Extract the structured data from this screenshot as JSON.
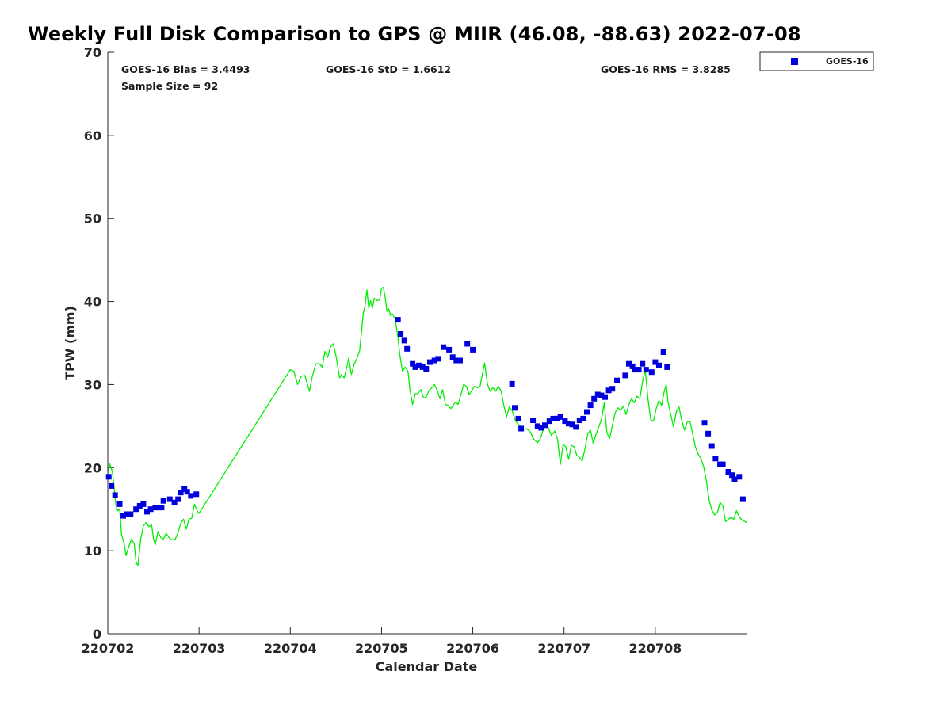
{
  "title": "Weekly Full Disk Comparison to GPS @ MIIR (46.08, -88.63) 2022-07-08",
  "stats": {
    "bias": "GOES-16 Bias = 3.4493",
    "std": "GOES-16 StD = 1.6612",
    "rms": "GOES-16 RMS = 3.8285",
    "sample": "Sample Size = 92"
  },
  "colors": {
    "goes": "#0000dd",
    "gps": "#00ee00",
    "axis": "#262626"
  },
  "chart_data": {
    "type": "scatter",
    "xlabel": "Calendar Date",
    "ylabel": "TPW (mm)",
    "x_unit": "days",
    "xlim": [
      0,
      7
    ],
    "ylim": [
      0,
      70
    ],
    "xticks": [
      {
        "value": 0,
        "label": "220702"
      },
      {
        "value": 1,
        "label": "220703"
      },
      {
        "value": 2,
        "label": "220704"
      },
      {
        "value": 3,
        "label": "220705"
      },
      {
        "value": 4,
        "label": "220706"
      },
      {
        "value": 5,
        "label": "220707"
      },
      {
        "value": 6,
        "label": "220708"
      }
    ],
    "yticks": [
      0,
      10,
      20,
      30,
      40,
      50,
      60,
      70
    ],
    "legend": {
      "position": "top-right",
      "entries": [
        "GOES-16"
      ]
    },
    "series": [
      {
        "name": "GOES-16",
        "kind": "scatter",
        "color": "#0000dd",
        "points": [
          [
            0.01,
            18.9
          ],
          [
            0.04,
            17.8
          ],
          [
            0.08,
            16.7
          ],
          [
            0.13,
            15.6
          ],
          [
            0.17,
            14.2
          ],
          [
            0.21,
            14.4
          ],
          [
            0.25,
            14.4
          ],
          [
            0.31,
            15.0
          ],
          [
            0.35,
            15.4
          ],
          [
            0.39,
            15.6
          ],
          [
            0.43,
            14.7
          ],
          [
            0.47,
            15.0
          ],
          [
            0.52,
            15.2
          ],
          [
            0.56,
            15.2
          ],
          [
            0.59,
            15.2
          ],
          [
            0.61,
            16.0
          ],
          [
            0.68,
            16.2
          ],
          [
            0.73,
            15.8
          ],
          [
            0.77,
            16.2
          ],
          [
            0.8,
            17.0
          ],
          [
            0.84,
            17.4
          ],
          [
            0.87,
            17.1
          ],
          [
            0.91,
            16.6
          ],
          [
            0.97,
            16.8
          ],
          [
            3.18,
            37.8
          ],
          [
            3.21,
            36.1
          ],
          [
            3.25,
            35.3
          ],
          [
            3.28,
            34.3
          ],
          [
            3.34,
            32.5
          ],
          [
            3.37,
            32.1
          ],
          [
            3.41,
            32.3
          ],
          [
            3.45,
            32.1
          ],
          [
            3.49,
            31.9
          ],
          [
            3.53,
            32.7
          ],
          [
            3.58,
            32.9
          ],
          [
            3.62,
            33.1
          ],
          [
            3.68,
            34.5
          ],
          [
            3.74,
            34.2
          ],
          [
            3.78,
            33.3
          ],
          [
            3.82,
            32.9
          ],
          [
            3.86,
            32.9
          ],
          [
            3.94,
            34.9
          ],
          [
            4.0,
            34.2
          ],
          [
            4.43,
            30.1
          ],
          [
            4.46,
            27.2
          ],
          [
            4.5,
            25.9
          ],
          [
            4.53,
            24.7
          ],
          [
            4.66,
            25.7
          ],
          [
            4.71,
            25.0
          ],
          [
            4.75,
            24.8
          ],
          [
            4.79,
            25.1
          ],
          [
            4.84,
            25.6
          ],
          [
            4.88,
            25.9
          ],
          [
            4.92,
            25.9
          ],
          [
            4.96,
            26.1
          ],
          [
            5.01,
            25.6
          ],
          [
            5.05,
            25.3
          ],
          [
            5.09,
            25.2
          ],
          [
            5.13,
            24.9
          ],
          [
            5.17,
            25.7
          ],
          [
            5.21,
            25.9
          ],
          [
            5.25,
            26.7
          ],
          [
            5.29,
            27.5
          ],
          [
            5.33,
            28.3
          ],
          [
            5.37,
            28.8
          ],
          [
            5.41,
            28.7
          ],
          [
            5.45,
            28.5
          ],
          [
            5.49,
            29.3
          ],
          [
            5.53,
            29.5
          ],
          [
            5.58,
            30.5
          ],
          [
            5.67,
            31.1
          ],
          [
            5.71,
            32.5
          ],
          [
            5.75,
            32.2
          ],
          [
            5.78,
            31.8
          ],
          [
            5.82,
            31.8
          ],
          [
            5.86,
            32.5
          ],
          [
            5.9,
            31.8
          ],
          [
            5.96,
            31.5
          ],
          [
            6.0,
            32.7
          ],
          [
            6.04,
            32.3
          ],
          [
            6.09,
            33.9
          ],
          [
            6.13,
            32.1
          ],
          [
            6.54,
            25.4
          ],
          [
            6.58,
            24.1
          ],
          [
            6.62,
            22.6
          ],
          [
            6.66,
            21.1
          ],
          [
            6.71,
            20.4
          ],
          [
            6.74,
            20.4
          ],
          [
            6.8,
            19.5
          ],
          [
            6.84,
            19.1
          ],
          [
            6.87,
            18.6
          ],
          [
            6.92,
            18.9
          ],
          [
            6.96,
            16.2
          ]
        ]
      },
      {
        "kind": "line",
        "color": "#00ee00",
        "points": [
          [
            0.0,
            19.0
          ],
          [
            0.02,
            20.5
          ],
          [
            0.05,
            19.5
          ],
          [
            0.07,
            17.5
          ],
          [
            0.09,
            15.2
          ],
          [
            0.11,
            14.8
          ],
          [
            0.13,
            15.0
          ],
          [
            0.15,
            12.0
          ],
          [
            0.18,
            10.8
          ],
          [
            0.2,
            9.4
          ],
          [
            0.23,
            10.5
          ],
          [
            0.26,
            11.4
          ],
          [
            0.29,
            10.8
          ],
          [
            0.31,
            8.6
          ],
          [
            0.33,
            8.2
          ],
          [
            0.36,
            11.4
          ],
          [
            0.39,
            13.0
          ],
          [
            0.42,
            13.4
          ],
          [
            0.45,
            12.9
          ],
          [
            0.48,
            13.1
          ],
          [
            0.5,
            11.5
          ],
          [
            0.52,
            10.7
          ],
          [
            0.55,
            12.3
          ],
          [
            0.58,
            11.6
          ],
          [
            0.61,
            11.4
          ],
          [
            0.64,
            12.1
          ],
          [
            0.67,
            11.6
          ],
          [
            0.7,
            11.3
          ],
          [
            0.74,
            11.4
          ],
          [
            0.77,
            12.2
          ],
          [
            0.8,
            13.3
          ],
          [
            0.83,
            13.8
          ],
          [
            0.86,
            12.6
          ],
          [
            0.89,
            13.8
          ],
          [
            0.92,
            13.9
          ],
          [
            0.95,
            15.6
          ],
          [
            0.98,
            14.8
          ],
          [
            1.0,
            14.5
          ],
          [
            2.0,
            31.8
          ],
          [
            2.04,
            31.6
          ],
          [
            2.08,
            30.0
          ],
          [
            2.12,
            31.0
          ],
          [
            2.16,
            31.1
          ],
          [
            2.21,
            29.2
          ],
          [
            2.24,
            30.9
          ],
          [
            2.28,
            32.5
          ],
          [
            2.32,
            32.5
          ],
          [
            2.35,
            32.1
          ],
          [
            2.38,
            34.0
          ],
          [
            2.41,
            33.3
          ],
          [
            2.44,
            34.5
          ],
          [
            2.47,
            34.9
          ],
          [
            2.5,
            33.5
          ],
          [
            2.52,
            32.2
          ],
          [
            2.54,
            30.8
          ],
          [
            2.56,
            31.2
          ],
          [
            2.59,
            30.8
          ],
          [
            2.62,
            32.1
          ],
          [
            2.64,
            33.2
          ],
          [
            2.67,
            31.2
          ],
          [
            2.7,
            32.5
          ],
          [
            2.73,
            33.1
          ],
          [
            2.76,
            34.1
          ],
          [
            2.78,
            36.3
          ],
          [
            2.8,
            38.6
          ],
          [
            2.82,
            39.5
          ],
          [
            2.84,
            41.4
          ],
          [
            2.86,
            39.2
          ],
          [
            2.88,
            40.1
          ],
          [
            2.9,
            39.2
          ],
          [
            2.92,
            40.4
          ],
          [
            2.95,
            40.1
          ],
          [
            2.98,
            40.2
          ],
          [
            3.0,
            41.6
          ],
          [
            3.02,
            41.7
          ],
          [
            3.04,
            40.5
          ],
          [
            3.06,
            38.8
          ],
          [
            3.08,
            39.1
          ],
          [
            3.1,
            38.3
          ],
          [
            3.12,
            38.5
          ],
          [
            3.15,
            37.9
          ],
          [
            3.18,
            35.6
          ],
          [
            3.2,
            33.6
          ],
          [
            3.23,
            31.6
          ],
          [
            3.26,
            32.1
          ],
          [
            3.29,
            31.6
          ],
          [
            3.31,
            29.5
          ],
          [
            3.34,
            27.6
          ],
          [
            3.37,
            28.9
          ],
          [
            3.4,
            28.9
          ],
          [
            3.43,
            29.4
          ],
          [
            3.46,
            28.4
          ],
          [
            3.49,
            28.5
          ],
          [
            3.52,
            29.3
          ],
          [
            3.55,
            29.6
          ],
          [
            3.58,
            30.0
          ],
          [
            3.61,
            29.3
          ],
          [
            3.64,
            28.3
          ],
          [
            3.67,
            29.4
          ],
          [
            3.7,
            27.6
          ],
          [
            3.73,
            27.5
          ],
          [
            3.76,
            27.1
          ],
          [
            3.78,
            27.4
          ],
          [
            3.81,
            27.9
          ],
          [
            3.84,
            27.6
          ],
          [
            3.87,
            28.8
          ],
          [
            3.9,
            30.0
          ],
          [
            3.93,
            29.8
          ],
          [
            3.96,
            28.8
          ],
          [
            3.99,
            29.3
          ],
          [
            4.02,
            29.8
          ],
          [
            4.05,
            29.6
          ],
          [
            4.08,
            29.8
          ],
          [
            4.1,
            31.0
          ],
          [
            4.13,
            32.6
          ],
          [
            4.16,
            30.1
          ],
          [
            4.19,
            29.2
          ],
          [
            4.22,
            29.6
          ],
          [
            4.25,
            29.2
          ],
          [
            4.28,
            29.8
          ],
          [
            4.31,
            29.2
          ],
          [
            4.34,
            27.5
          ],
          [
            4.37,
            26.1
          ],
          [
            4.4,
            27.3
          ],
          [
            4.43,
            26.9
          ],
          [
            4.47,
            25.6
          ],
          [
            4.51,
            25.1
          ],
          [
            4.55,
            24.6
          ],
          [
            4.59,
            24.7
          ],
          [
            4.63,
            24.3
          ],
          [
            4.67,
            23.4
          ],
          [
            4.71,
            23.0
          ],
          [
            4.74,
            23.5
          ],
          [
            4.77,
            24.5
          ],
          [
            4.8,
            25.2
          ],
          [
            4.83,
            24.8
          ],
          [
            4.86,
            23.9
          ],
          [
            4.9,
            24.4
          ],
          [
            4.93,
            23.3
          ],
          [
            4.96,
            20.4
          ],
          [
            4.99,
            22.8
          ],
          [
            5.02,
            22.5
          ],
          [
            5.05,
            21.0
          ],
          [
            5.08,
            22.7
          ],
          [
            5.11,
            22.5
          ],
          [
            5.14,
            21.5
          ],
          [
            5.17,
            21.2
          ],
          [
            5.2,
            20.8
          ],
          [
            5.23,
            22.3
          ],
          [
            5.26,
            24.1
          ],
          [
            5.29,
            24.5
          ],
          [
            5.32,
            22.9
          ],
          [
            5.35,
            24.0
          ],
          [
            5.38,
            24.9
          ],
          [
            5.41,
            25.8
          ],
          [
            5.44,
            27.8
          ],
          [
            5.47,
            24.2
          ],
          [
            5.5,
            23.5
          ],
          [
            5.53,
            25.1
          ],
          [
            5.56,
            26.6
          ],
          [
            5.59,
            27.2
          ],
          [
            5.62,
            26.9
          ],
          [
            5.65,
            27.4
          ],
          [
            5.68,
            26.4
          ],
          [
            5.71,
            27.6
          ],
          [
            5.74,
            28.3
          ],
          [
            5.77,
            27.8
          ],
          [
            5.8,
            28.6
          ],
          [
            5.83,
            28.3
          ],
          [
            5.86,
            30.3
          ],
          [
            5.89,
            31.8
          ],
          [
            5.92,
            28.3
          ],
          [
            5.95,
            25.8
          ],
          [
            5.98,
            25.6
          ],
          [
            6.01,
            27.1
          ],
          [
            6.04,
            28.1
          ],
          [
            6.07,
            27.5
          ],
          [
            6.1,
            29.3
          ],
          [
            6.12,
            30.0
          ],
          [
            6.14,
            27.9
          ],
          [
            6.17,
            26.4
          ],
          [
            6.2,
            24.9
          ],
          [
            6.23,
            26.7
          ],
          [
            6.26,
            27.3
          ],
          [
            6.29,
            25.7
          ],
          [
            6.32,
            24.5
          ],
          [
            6.35,
            25.5
          ],
          [
            6.38,
            25.6
          ],
          [
            6.41,
            24.0
          ],
          [
            6.44,
            22.5
          ],
          [
            6.47,
            21.6
          ],
          [
            6.5,
            21.1
          ],
          [
            6.53,
            20.1
          ],
          [
            6.56,
            18.4
          ],
          [
            6.59,
            16.1
          ],
          [
            6.62,
            14.9
          ],
          [
            6.65,
            14.3
          ],
          [
            6.68,
            14.6
          ],
          [
            6.71,
            15.8
          ],
          [
            6.74,
            15.4
          ],
          [
            6.77,
            13.5
          ],
          [
            6.8,
            13.8
          ],
          [
            6.83,
            14.0
          ],
          [
            6.86,
            13.8
          ],
          [
            6.89,
            14.8
          ],
          [
            6.92,
            14.1
          ],
          [
            6.95,
            13.7
          ],
          [
            7.0,
            13.4
          ]
        ]
      }
    ]
  }
}
